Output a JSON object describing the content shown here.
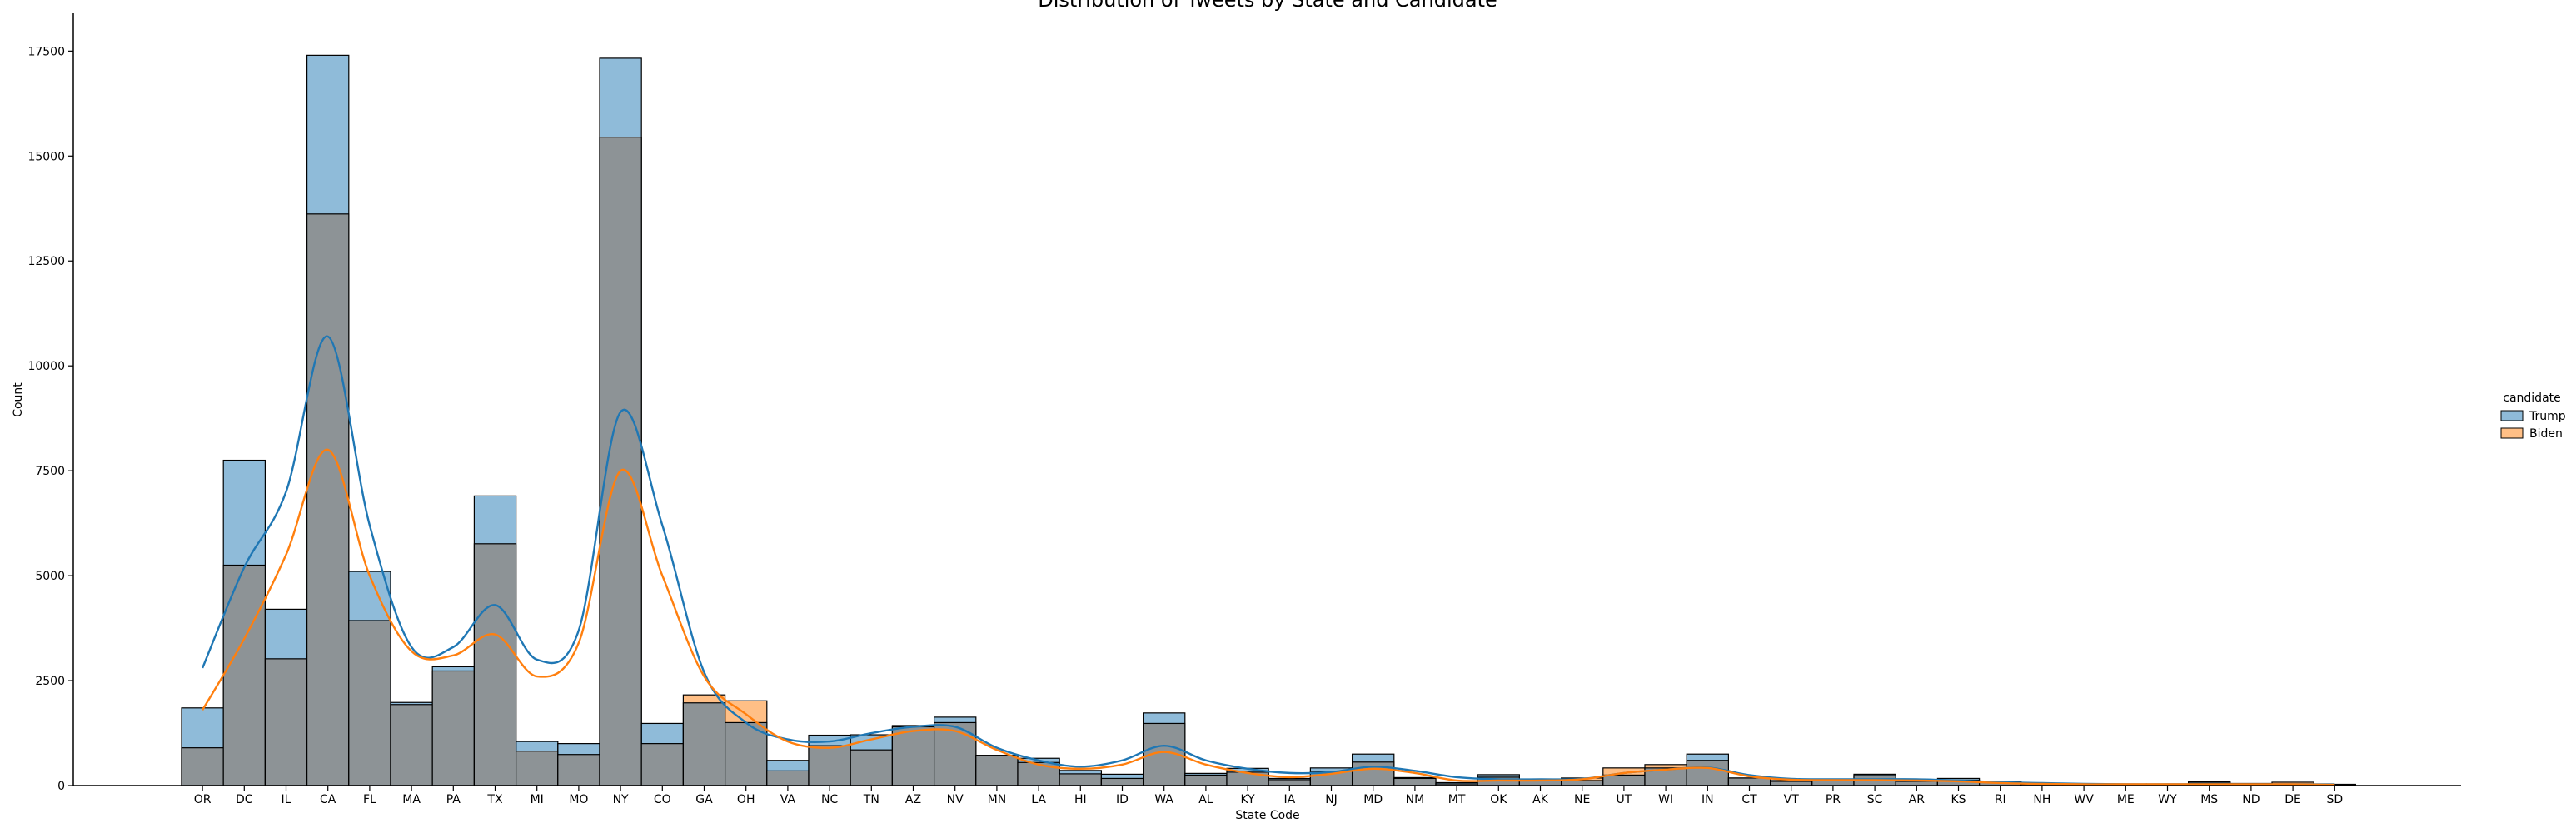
{
  "chart_data": {
    "type": "bar",
    "title": "Distribution of Tweets by State and Candidate",
    "xlabel": "State Code",
    "ylabel": "Count",
    "ylim": [
      0,
      18400
    ],
    "yticks": [
      0,
      2500,
      5000,
      7500,
      10000,
      12500,
      15000,
      17500
    ],
    "ytick_labels": [
      "0",
      "2500",
      "5000",
      "7500",
      "10000",
      "12500",
      "15000",
      "17500"
    ],
    "grid": false,
    "legend_position": "right",
    "legend_title": "candidate",
    "categories": [
      "OR",
      "DC",
      "IL",
      "CA",
      "FL",
      "MA",
      "PA",
      "TX",
      "MI",
      "MO",
      "NY",
      "CO",
      "GA",
      "OH",
      "VA",
      "NC",
      "TN",
      "AZ",
      "NV",
      "MN",
      "LA",
      "HI",
      "ID",
      "WA",
      "AL",
      "KY",
      "IA",
      "NJ",
      "MD",
      "NM",
      "MT",
      "OK",
      "AK",
      "NE",
      "UT",
      "WI",
      "IN",
      "CT",
      "VT",
      "PR",
      "SC",
      "AR",
      "KS",
      "RI",
      "NH",
      "WV",
      "ME",
      "WY",
      "MS",
      "ND",
      "DE",
      "SD"
    ],
    "series": [
      {
        "name": "Trump",
        "color": "#1f77b4",
        "values": [
          1850,
          7750,
          4200,
          17400,
          5100,
          1980,
          2830,
          6900,
          1050,
          1000,
          17330,
          1480,
          1970,
          1500,
          600,
          1200,
          1210,
          1430,
          1630,
          720,
          650,
          360,
          270,
          1730,
          290,
          410,
          170,
          420,
          750,
          190,
          70,
          260,
          140,
          120,
          250,
          420,
          750,
          180,
          100,
          120,
          270,
          130,
          170,
          100,
          40,
          40,
          40,
          40,
          90,
          40,
          40,
          30
        ],
        "kde": [
          2800,
          5200,
          7000,
          10700,
          6200,
          3300,
          3300,
          4300,
          3000,
          3700,
          8900,
          6200,
          2700,
          1500,
          1100,
          1050,
          1250,
          1400,
          1400,
          900,
          600,
          450,
          600,
          950,
          600,
          400,
          300,
          320,
          450,
          350,
          200,
          150,
          150,
          160,
          300,
          380,
          430,
          250,
          160,
          150,
          150,
          150,
          120,
          80,
          60,
          40,
          30,
          30,
          30,
          30,
          30,
          30
        ]
      },
      {
        "name": "Biden",
        "color": "#ff7f0e",
        "values": [
          900,
          5250,
          3020,
          13620,
          3930,
          1930,
          2730,
          5760,
          820,
          740,
          15450,
          1000,
          2160,
          2020,
          350,
          950,
          850,
          1400,
          1500,
          720,
          550,
          280,
          170,
          1480,
          250,
          320,
          140,
          340,
          560,
          170,
          40,
          200,
          120,
          180,
          420,
          500,
          600,
          180,
          120,
          130,
          240,
          100,
          130,
          80,
          30,
          30,
          30,
          30,
          60,
          50,
          80,
          20
        ],
        "kde": [
          1800,
          3500,
          5500,
          8000,
          5000,
          3200,
          3100,
          3600,
          2600,
          3400,
          7500,
          5000,
          2600,
          1700,
          1050,
          900,
          1100,
          1300,
          1300,
          850,
          500,
          400,
          500,
          800,
          500,
          300,
          200,
          280,
          400,
          300,
          120,
          120,
          120,
          150,
          300,
          380,
          420,
          220,
          140,
          130,
          130,
          120,
          100,
          60,
          40,
          30,
          30,
          30,
          30,
          30,
          30,
          20
        ]
      }
    ]
  }
}
